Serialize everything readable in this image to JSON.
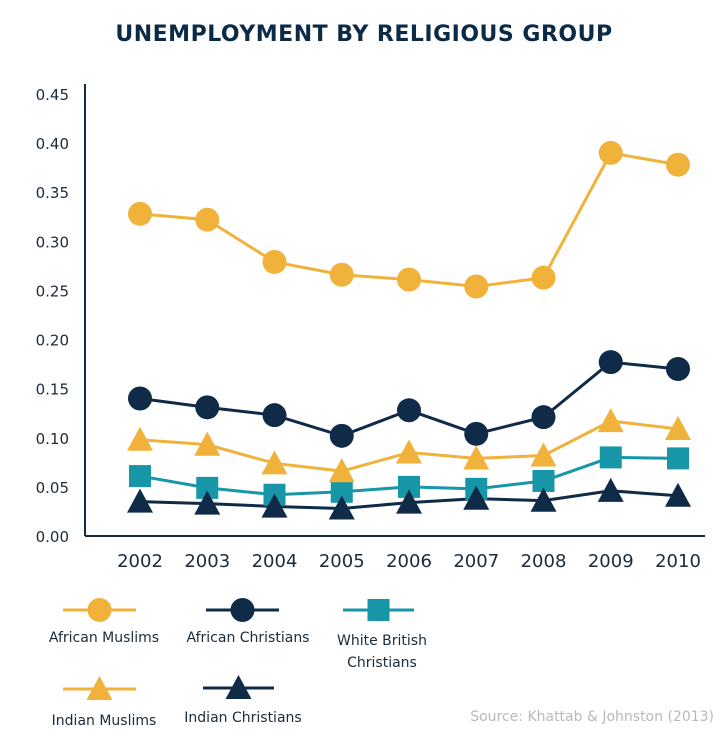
{
  "chart_data": {
    "type": "line",
    "title": "UNEMPLOYMENT BY RELIGIOUS GROUP",
    "xlabel": "",
    "ylabel": "",
    "x": [
      "2002",
      "2003",
      "2004",
      "2005",
      "2006",
      "2007",
      "2008",
      "2009",
      "2010"
    ],
    "ylim": [
      0,
      0.45
    ],
    "yticks": [
      "0.00",
      "0.05",
      "0.10",
      "0.15",
      "0.20",
      "0.25",
      "0.30",
      "0.35",
      "0.40",
      "0.45"
    ],
    "grid": false,
    "legend_position": "bottom",
    "series": [
      {
        "name": "African Muslims",
        "marker": "circle",
        "color": "#f0b23a",
        "values": [
          0.328,
          0.322,
          0.279,
          0.266,
          0.261,
          0.254,
          0.263,
          0.39,
          0.378
        ]
      },
      {
        "name": "African Christians",
        "marker": "circle",
        "color": "#0f2b48",
        "values": [
          0.14,
          0.131,
          0.123,
          0.102,
          0.128,
          0.104,
          0.121,
          0.177,
          0.17
        ]
      },
      {
        "name": "White British Christians",
        "marker": "square",
        "color": "#1796a7",
        "values": [
          0.061,
          0.049,
          0.042,
          0.045,
          0.05,
          0.048,
          0.056,
          0.08,
          0.079
        ]
      },
      {
        "name": "Indian Muslims",
        "marker": "triangle",
        "color": "#f0b23a",
        "values": [
          0.098,
          0.093,
          0.074,
          0.066,
          0.085,
          0.079,
          0.082,
          0.117,
          0.109
        ]
      },
      {
        "name": "Indian Christians",
        "marker": "triangle",
        "color": "#0f2b48",
        "values": [
          0.035,
          0.033,
          0.03,
          0.028,
          0.034,
          0.038,
          0.036,
          0.046,
          0.041
        ]
      }
    ]
  },
  "legend": [
    {
      "label": "African Muslims"
    },
    {
      "label": "African Christians"
    },
    {
      "label": "White British\nChristians"
    },
    {
      "label": "Indian Muslims"
    },
    {
      "label": "Indian Christians"
    }
  ],
  "source": "Source: Khattab & Johnston (2013)"
}
